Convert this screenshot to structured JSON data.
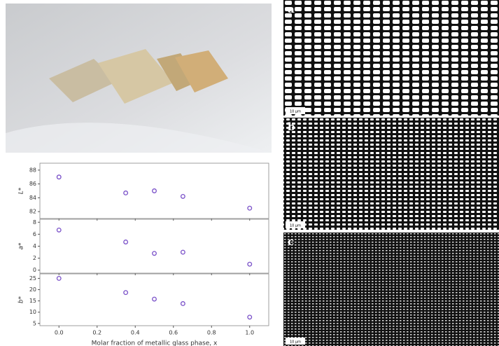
{
  "figure": {
    "micrographs": [
      {
        "label": "a",
        "scale": "10 μm"
      },
      {
        "label": "b",
        "scale": "10 μm"
      },
      {
        "label": "c",
        "scale": "10 μm"
      }
    ]
  },
  "chart_data": [
    {
      "type": "scatter",
      "ylabel": "L*",
      "x": [
        0,
        0.35,
        0.5,
        0.65,
        1.0
      ],
      "values": [
        87.0,
        84.7,
        85.0,
        84.2,
        82.5
      ],
      "color": "#7b52c9",
      "xlim": [
        -0.1,
        1.1
      ],
      "ylim": [
        81,
        89
      ],
      "yticks": [
        82,
        84,
        86,
        88
      ],
      "xticks": [
        {
          "value": 0,
          "label": "0.0"
        },
        {
          "value": 0.2,
          "label": "0.2"
        },
        {
          "value": 0.4,
          "label": "0.4"
        },
        {
          "value": 0.6,
          "label": "0.6"
        },
        {
          "value": 0.8,
          "label": "0.8"
        },
        {
          "value": 1,
          "label": "1.0"
        }
      ]
    },
    {
      "type": "scatter",
      "ylabel": "a*",
      "x": [
        0,
        0.35,
        0.5,
        0.65,
        1.0
      ],
      "values": [
        6.7,
        4.7,
        2.8,
        3.0,
        1.0
      ],
      "color": "#7b52c9",
      "xlim": [
        -0.1,
        1.1
      ],
      "ylim": [
        -0.5,
        8.5
      ],
      "yticks": [
        0,
        2,
        4,
        6,
        8
      ],
      "xticks": [
        {
          "value": 0,
          "label": "0.0"
        },
        {
          "value": 0.2,
          "label": "0.2"
        },
        {
          "value": 0.4,
          "label": "0.4"
        },
        {
          "value": 0.6,
          "label": "0.6"
        },
        {
          "value": 0.8,
          "label": "0.8"
        },
        {
          "value": 1,
          "label": "1.0"
        }
      ]
    },
    {
      "type": "scatter",
      "ylabel": "b*",
      "xlabel": "Molar fraction of metallic glass phase, x",
      "x": [
        0,
        0.35,
        0.5,
        0.65,
        1.0
      ],
      "values": [
        25,
        18.7,
        15.8,
        13.8,
        7.8
      ],
      "color": "#7b52c9",
      "xlim": [
        -0.1,
        1.1
      ],
      "ylim": [
        4,
        27
      ],
      "yticks": [
        5,
        10,
        15,
        20,
        25
      ],
      "xticks": [
        {
          "value": 0,
          "label": "0.0"
        },
        {
          "value": 0.2,
          "label": "0.2"
        },
        {
          "value": 0.4,
          "label": "0.4"
        },
        {
          "value": 0.6,
          "label": "0.6"
        },
        {
          "value": 0.8,
          "label": "0.8"
        },
        {
          "value": 1,
          "label": "1.0"
        }
      ]
    }
  ]
}
